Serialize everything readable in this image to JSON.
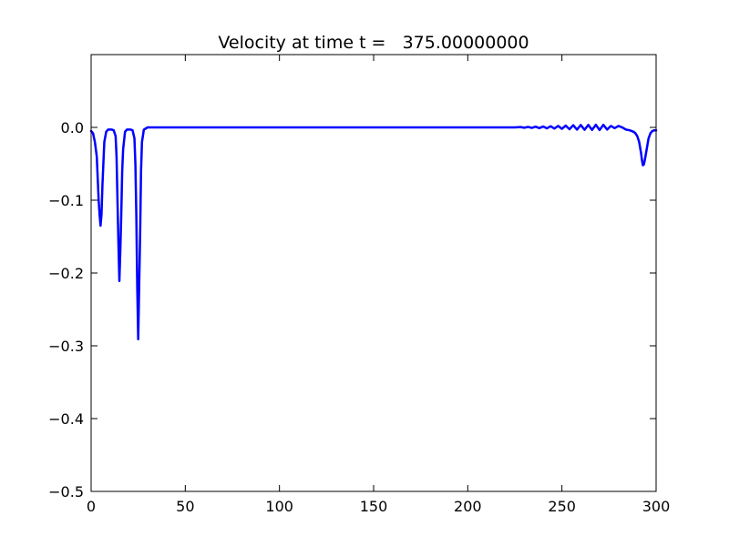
{
  "chart_data": {
    "type": "line",
    "title": "Velocity at time t =   375.00000000",
    "xlabel": "",
    "ylabel": "",
    "xlim": [
      0,
      300
    ],
    "ylim": [
      -0.5,
      0.1
    ],
    "xticks": [
      0,
      50,
      100,
      150,
      200,
      250,
      300
    ],
    "xtick_labels": [
      "0",
      "50",
      "100",
      "150",
      "200",
      "250",
      "300"
    ],
    "yticks": [
      0.0,
      -0.1,
      -0.2,
      -0.3,
      -0.4,
      -0.5
    ],
    "ytick_labels": [
      "0.0",
      "−0.1",
      "−0.2",
      "−0.3",
      "−0.4",
      "−0.5"
    ],
    "grid": false,
    "series": [
      {
        "color": "#0000ff",
        "x": [
          0,
          1,
          2,
          3,
          3.5,
          4,
          4.5,
          5,
          5.5,
          6,
          6.5,
          7,
          8,
          9,
          10,
          11,
          12,
          13,
          13.5,
          14,
          14.5,
          15,
          15.5,
          16,
          16.5,
          17,
          18,
          19,
          20,
          21,
          22,
          23,
          23.5,
          24,
          24.5,
          25,
          25.5,
          26,
          26.5,
          27,
          28,
          30,
          50,
          100,
          150,
          200,
          225,
          228,
          230,
          232,
          234,
          236,
          238,
          240,
          242,
          244,
          246,
          248,
          250,
          252,
          254,
          256,
          258,
          260,
          262,
          264,
          266,
          268,
          270,
          272,
          274,
          276,
          278,
          280,
          282,
          284,
          286,
          288,
          289,
          290,
          291,
          292,
          292.5,
          293,
          293.5,
          294,
          295,
          296,
          297,
          298,
          299,
          300
        ],
        "y": [
          -0.005,
          -0.008,
          -0.02,
          -0.04,
          -0.07,
          -0.1,
          -0.12,
          -0.135,
          -0.12,
          -0.08,
          -0.05,
          -0.02,
          -0.006,
          -0.003,
          -0.003,
          -0.003,
          -0.004,
          -0.012,
          -0.04,
          -0.1,
          -0.16,
          -0.211,
          -0.17,
          -0.12,
          -0.06,
          -0.03,
          -0.006,
          -0.003,
          -0.003,
          -0.003,
          -0.004,
          -0.015,
          -0.05,
          -0.12,
          -0.22,
          -0.291,
          -0.22,
          -0.15,
          -0.06,
          -0.02,
          -0.003,
          0,
          0,
          0,
          0,
          0,
          0,
          0.0005,
          -0.0005,
          0.0007,
          -0.0007,
          0.001,
          -0.001,
          0.0013,
          -0.0013,
          0.0016,
          -0.0016,
          0.002,
          -0.002,
          0.0025,
          -0.0025,
          0.003,
          -0.003,
          0.0033,
          -0.0033,
          0.0035,
          -0.0035,
          0.0036,
          -0.0036,
          0.0035,
          -0.003,
          0.002,
          -0.001,
          0.002,
          0,
          -0.003,
          -0.004,
          -0.006,
          -0.008,
          -0.012,
          -0.02,
          -0.035,
          -0.045,
          -0.052,
          -0.051,
          -0.045,
          -0.03,
          -0.015,
          -0.008,
          -0.005,
          -0.004,
          -0.004
        ]
      }
    ]
  }
}
